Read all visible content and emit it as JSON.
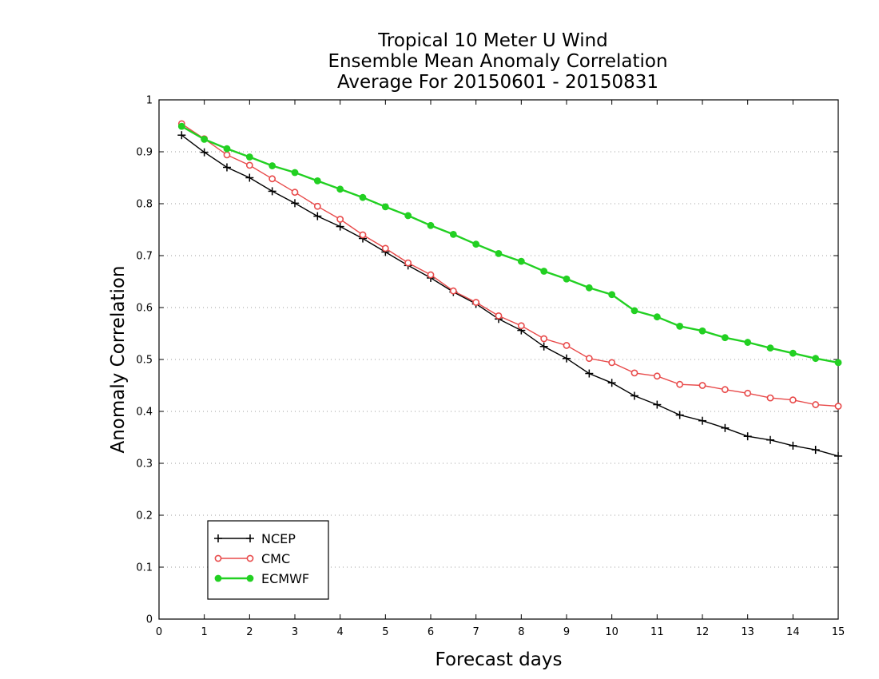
{
  "chart_data": {
    "type": "line",
    "title_lines": [
      "Tropical 10 Meter U Wind",
      "Ensemble Mean Anomaly Correlation",
      "Average For 20150601 - 20150831"
    ],
    "xlabel": "Forecast days",
    "ylabel": "Anomaly Correlation",
    "xlim": [
      0,
      15
    ],
    "ylim": [
      0,
      1
    ],
    "x_ticks": [
      0,
      1,
      2,
      3,
      4,
      5,
      6,
      7,
      8,
      9,
      10,
      11,
      12,
      13,
      14,
      15
    ],
    "y_ticks": [
      0,
      0.1,
      0.2,
      0.3,
      0.4,
      0.5,
      0.6,
      0.7,
      0.8,
      0.9,
      1
    ],
    "grid": "horizontal dotted",
    "legend_position": "bottom-left",
    "x": [
      0.5,
      1,
      1.5,
      2,
      2.5,
      3,
      3.5,
      4,
      4.5,
      5,
      5.5,
      6,
      6.5,
      7,
      7.5,
      8,
      8.5,
      9,
      9.5,
      10,
      10.5,
      11,
      11.5,
      12,
      12.5,
      13,
      13.5,
      14,
      14.5,
      15
    ],
    "series": [
      {
        "name": "NCEP",
        "color": "#000000",
        "marker": "plus",
        "values": [
          0.932,
          0.899,
          0.87,
          0.85,
          0.824,
          0.801,
          0.776,
          0.756,
          0.733,
          0.707,
          0.681,
          0.657,
          0.63,
          0.607,
          0.578,
          0.556,
          0.525,
          0.502,
          0.473,
          0.455,
          0.43,
          0.413,
          0.393,
          0.382,
          0.368,
          0.352,
          0.345,
          0.334,
          0.326,
          0.314
        ]
      },
      {
        "name": "CMC",
        "color": "#e84a4a",
        "marker": "open-circle",
        "values": [
          0.954,
          0.925,
          0.894,
          0.874,
          0.848,
          0.822,
          0.795,
          0.77,
          0.74,
          0.714,
          0.686,
          0.663,
          0.632,
          0.61,
          0.584,
          0.565,
          0.54,
          0.527,
          0.502,
          0.494,
          0.474,
          0.468,
          0.452,
          0.45,
          0.442,
          0.435,
          0.426,
          0.422,
          0.413,
          0.41
        ]
      },
      {
        "name": "ECMWF",
        "color": "#22d022",
        "marker": "filled-circle",
        "values": [
          0.949,
          0.924,
          0.906,
          0.89,
          0.873,
          0.86,
          0.844,
          0.828,
          0.812,
          0.794,
          0.777,
          0.758,
          0.741,
          0.722,
          0.704,
          0.689,
          0.67,
          0.655,
          0.638,
          0.625,
          0.594,
          0.582,
          0.564,
          0.555,
          0.542,
          0.533,
          0.522,
          0.512,
          0.502,
          0.494
        ]
      }
    ]
  }
}
